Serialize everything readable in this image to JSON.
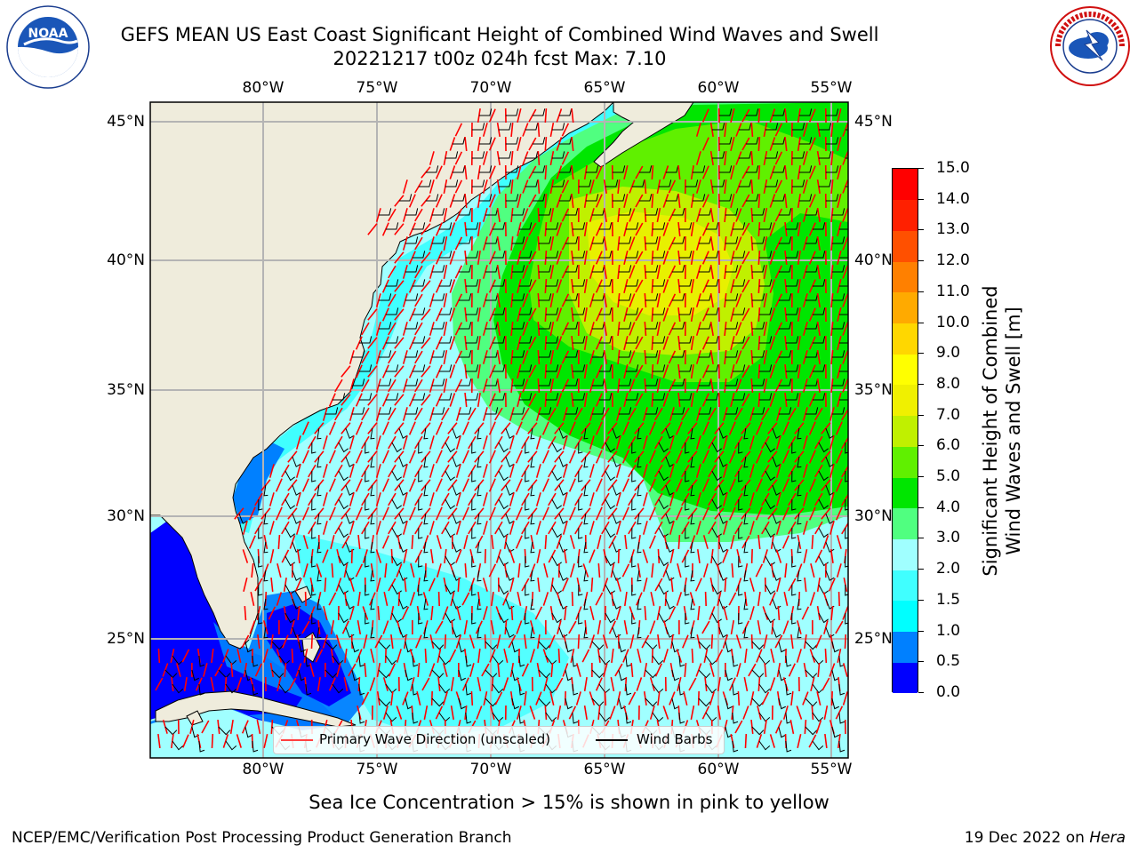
{
  "header": {
    "title_line1": "GEFS MEAN US East Coast Significant Height of Combined Wind Waves and Swell",
    "title_line2": "20221217 t00z 024h fcst   Max: 7.10"
  },
  "logos": {
    "left": "NOAA",
    "left_ring_text": "NATIONAL OCEANIC AND ATMOSPHERIC ADMINISTRATION · U.S. DEPARTMENT OF COMMERCE",
    "right_ring_text": "NATIONAL WEATHER SERVICE"
  },
  "map": {
    "lon_labels": [
      "80°W",
      "75°W",
      "70°W",
      "65°W",
      "60°W",
      "55°W"
    ],
    "lat_labels": [
      "45°N",
      "40°N",
      "35°N",
      "30°N",
      "25°N"
    ],
    "colors": {
      "land": "#efecdc",
      "grid": "#b4b4b4",
      "arrow": "#ff0000",
      "barb": "#000000"
    }
  },
  "legend": {
    "arrow_label": "Primary Wave Direction (unscaled)",
    "barb_label": "Wind Barbs"
  },
  "colorbar": {
    "label_line1": "Significant Height of Combined",
    "label_line2": "Wind Waves and Swell [m]",
    "ticks": [
      "0.0",
      "0.5",
      "1.0",
      "1.5",
      "2.0",
      "3.0",
      "4.0",
      "5.0",
      "6.0",
      "7.0",
      "8.0",
      "9.0",
      "10.0",
      "11.0",
      "12.0",
      "13.0",
      "14.0",
      "15.0"
    ],
    "colors": [
      "#0000ff",
      "#0080ff",
      "#00ffff",
      "#40ffff",
      "#a0ffff",
      "#50ff80",
      "#00e600",
      "#60f000",
      "#c0f000",
      "#f0f000",
      "#ffff00",
      "#ffd700",
      "#ffaa00",
      "#ff8000",
      "#ff5000",
      "#ff2000",
      "#ff0000"
    ]
  },
  "footer": {
    "note": "Sea Ice Concentration > 15% is shown in pink to yellow",
    "credit": "NCEP/EMC/Verification Post Processing Product Generation Branch",
    "date_prefix": "19 Dec 2022 on ",
    "date_host": "Hera"
  }
}
